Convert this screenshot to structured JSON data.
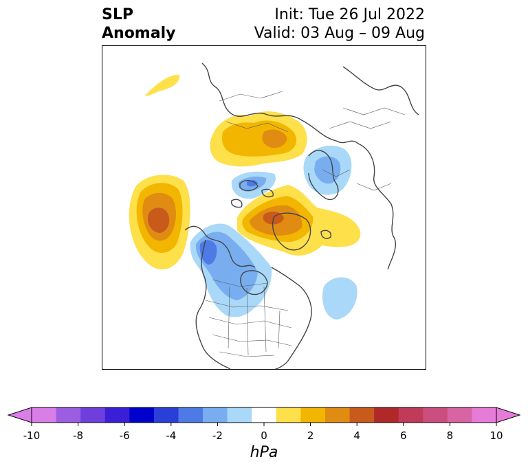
{
  "title": {
    "line1": "SLP",
    "line2": "Anomaly"
  },
  "init": "Init: Tue 26 Jul 2022",
  "valid": "Valid: 03 Aug – 09 Aug",
  "colorbar": {
    "unit": "hPa",
    "tick_labels": [
      "-10",
      "-8",
      "-6",
      "-4",
      "-2",
      "0",
      "2",
      "4",
      "6",
      "8",
      "10"
    ],
    "levels": [
      -10,
      -9,
      -8,
      -7,
      -6,
      -5,
      -4,
      -3,
      -2,
      -1,
      1,
      2,
      3,
      4,
      5,
      6,
      7,
      8,
      9,
      10
    ],
    "colors": [
      "#d87ee6",
      "#9c5ee0",
      "#6e3fdc",
      "#3b1fd6",
      "#0000cc",
      "#2a3ed8",
      "#4e7ae6",
      "#78aef0",
      "#aad8f8",
      "#ffffff",
      "#fde04a",
      "#f2b600",
      "#e08c12",
      "#c85a1c",
      "#b02828",
      "#c03a5a",
      "#cc4e7e",
      "#d864a4",
      "#e67cd8"
    ],
    "extend": "both"
  },
  "colors": {
    "pos_1": "#fde04a",
    "pos_2": "#f2b600",
    "pos_3": "#e08c12",
    "pos_4": "#c85a1c",
    "neg_1": "#aad8f8",
    "neg_2": "#78aef0",
    "neg_3": "#4e7ae6",
    "coast": "#444444"
  }
}
